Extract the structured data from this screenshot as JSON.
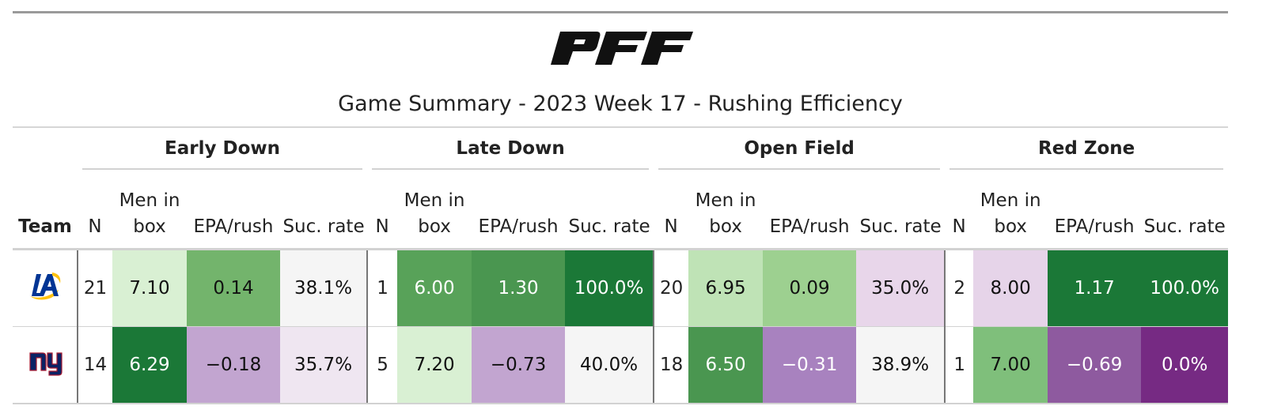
{
  "brand": {
    "logo_text": "PFF"
  },
  "title": "Game Summary - 2023 Week 17 - Rushing Efficiency",
  "columns": {
    "team": "Team",
    "n": "N",
    "men_in_box_line1": "Men in",
    "men_in_box_line2": "box",
    "epa": "EPA/rush",
    "suc": "Suc. rate"
  },
  "groups": [
    "Early Down",
    "Late Down",
    "Open Field",
    "Red Zone"
  ],
  "teams": [
    {
      "logo": "rams-la-logo-icon",
      "cells": [
        {
          "n": "21",
          "men": "7.10",
          "epa": "0.14",
          "suc": "38.1%"
        },
        {
          "n": "1",
          "men": "6.00",
          "epa": "1.30",
          "suc": "100.0%"
        },
        {
          "n": "20",
          "men": "6.95",
          "epa": "0.09",
          "suc": "35.0%"
        },
        {
          "n": "2",
          "men": "8.00",
          "epa": "1.17",
          "suc": "100.0%"
        }
      ]
    },
    {
      "logo": "giants-ny-logo-icon",
      "cells": [
        {
          "n": "14",
          "men": "6.29",
          "epa": "−0.18",
          "suc": "35.7%"
        },
        {
          "n": "5",
          "men": "7.20",
          "epa": "−0.73",
          "suc": "40.0%"
        },
        {
          "n": "18",
          "men": "6.50",
          "epa": "−0.31",
          "suc": "38.9%"
        },
        {
          "n": "1",
          "men": "7.00",
          "epa": "−0.69",
          "suc": "0.0%"
        }
      ]
    }
  ],
  "cell_colors": [
    [
      [
        "#d9f0d3",
        "#111111"
      ],
      [
        "#73b46c",
        "#111111"
      ],
      [
        "#f5f5f5",
        "#111111"
      ],
      [
        "#58a259",
        "#ffffff"
      ],
      [
        "#4a9650",
        "#ffffff"
      ],
      [
        "#1b7837",
        "#ffffff"
      ],
      [
        "#bfe3b6",
        "#111111"
      ],
      [
        "#9dd090",
        "#111111"
      ],
      [
        "#e8d6ea",
        "#111111"
      ],
      [
        "#e6d4e9",
        "#111111"
      ],
      [
        "#1b7837",
        "#ffffff"
      ],
      [
        "#1b7837",
        "#ffffff"
      ]
    ],
    [
      [
        "#1b7837",
        "#ffffff"
      ],
      [
        "#c2a5d0",
        "#111111"
      ],
      [
        "#efe6f1",
        "#111111"
      ],
      [
        "#d9f0d3",
        "#111111"
      ],
      [
        "#c2a5d0",
        "#111111"
      ],
      [
        "#f5f5f5",
        "#111111"
      ],
      [
        "#4a9650",
        "#ffffff"
      ],
      [
        "#a882bf",
        "#ffffff"
      ],
      [
        "#f5f5f5",
        "#111111"
      ],
      [
        "#7fbf7b",
        "#111111"
      ],
      [
        "#8e5a9f",
        "#ffffff"
      ],
      [
        "#762a83",
        "#ffffff"
      ]
    ]
  ]
}
